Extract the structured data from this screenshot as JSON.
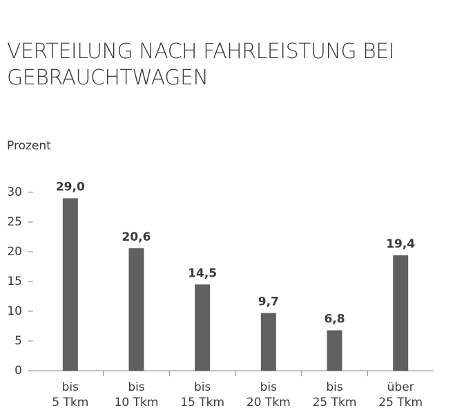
{
  "chart_data": {
    "type": "bar",
    "title": "VERTEILUNG NACH FAHRLEISTUNG BEI GEBRAUCHTWAGEN",
    "y_label": "Prozent",
    "categories": [
      [
        "bis",
        "5 Tkm"
      ],
      [
        "bis",
        "10 Tkm"
      ],
      [
        "bis",
        "15 Tkm"
      ],
      [
        "bis",
        "20 Tkm"
      ],
      [
        "bis",
        "25 Tkm"
      ],
      [
        "über",
        "25 Tkm"
      ]
    ],
    "values": [
      29.0,
      20.6,
      14.5,
      9.7,
      6.8,
      19.4
    ],
    "value_labels": [
      "29,0",
      "20,6",
      "14,5",
      "9,7",
      "6,8",
      "19,4"
    ],
    "color": "#606060",
    "ylim": [
      0,
      30
    ],
    "yticks": [
      0,
      5,
      10,
      15,
      20,
      25,
      30
    ],
    "grid": false
  }
}
